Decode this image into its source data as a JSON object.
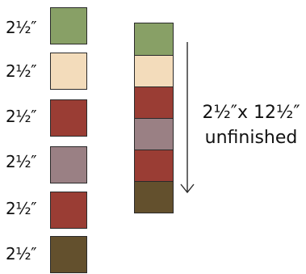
{
  "squares": [
    {
      "label": "2½″",
      "color": "#88a066"
    },
    {
      "label": "2½″",
      "color": "#f3dcbb"
    },
    {
      "label": "2½″",
      "color": "#9a3d34"
    },
    {
      "label": "2½″",
      "color": "#9a8084"
    },
    {
      "label": "2½″",
      "color": "#9a3d34"
    },
    {
      "label": "2½″",
      "color": "#63502d"
    }
  ],
  "strip": {
    "colors": [
      "#88a066",
      "#f3dcbb",
      "#9a3d34",
      "#9a8084",
      "#9a3d34",
      "#63502d"
    ]
  },
  "annotation": {
    "size": "2½″x 12½″",
    "state": "unfinished"
  }
}
